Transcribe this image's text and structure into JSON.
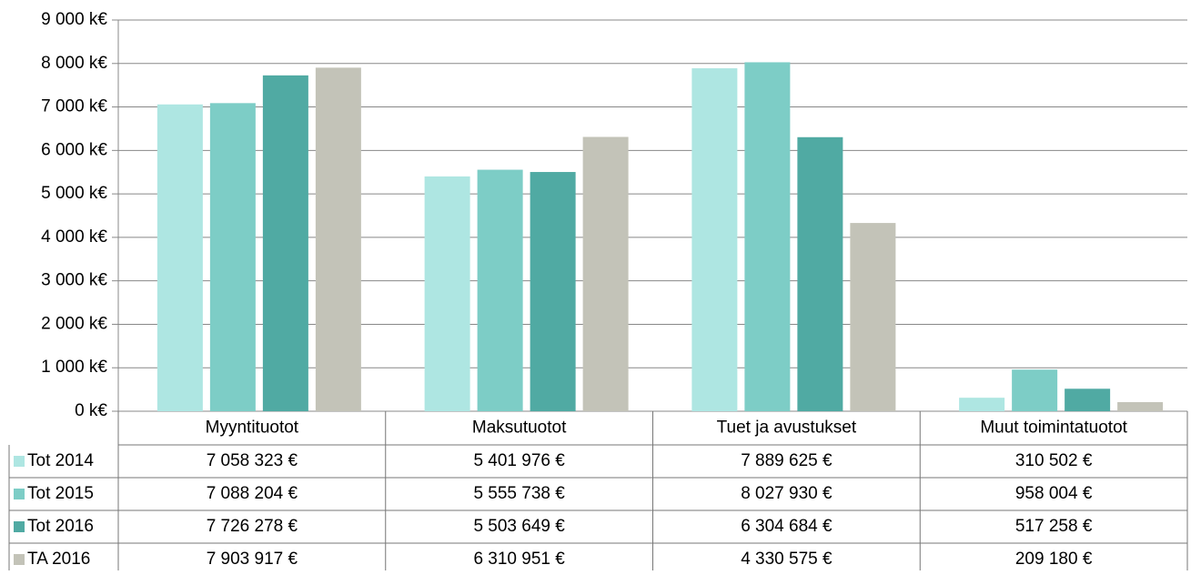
{
  "chart_data": {
    "type": "bar",
    "categories": [
      "Myyntituotot",
      "Maksutuotot",
      "Tuet ja avustukset",
      "Muut toimintatuotot"
    ],
    "series": [
      {
        "name": "Tot 2014",
        "color": "#aee6e2",
        "values": [
          7058.323,
          5401.976,
          7889.625,
          310.502
        ],
        "value_labels": [
          "7 058 323 €",
          "5 401 976 €",
          "7 889 625 €",
          "310 502 €"
        ]
      },
      {
        "name": "Tot 2015",
        "color": "#7dcdc6",
        "values": [
          7088.204,
          5555.738,
          8027.93,
          958.004
        ],
        "value_labels": [
          "7 088 204 €",
          "5 555 738 €",
          "8 027 930 €",
          "958 004 €"
        ]
      },
      {
        "name": "Tot 2016",
        "color": "#50aaa3",
        "values": [
          7726.278,
          5503.649,
          6304.684,
          517.258
        ],
        "value_labels": [
          "7 726 278 €",
          "5 503 649 €",
          "6 304 684 €",
          "517 258 €"
        ]
      },
      {
        "name": "TA 2016",
        "color": "#c3c3b8",
        "values": [
          7903.917,
          6310.951,
          4330.575,
          209.18
        ],
        "value_labels": [
          "7 903 917 €",
          "6 310 951 €",
          "4 330 575 €",
          "209 180 €"
        ]
      }
    ],
    "ylim": [
      0,
      9000
    ],
    "yticks": [
      {
        "value": 0,
        "label": "0 k€"
      },
      {
        "value": 1000,
        "label": "1 000 k€"
      },
      {
        "value": 2000,
        "label": "2 000 k€"
      },
      {
        "value": 3000,
        "label": "3 000 k€"
      },
      {
        "value": 4000,
        "label": "4 000 k€"
      },
      {
        "value": 5000,
        "label": "5 000 k€"
      },
      {
        "value": 6000,
        "label": "6 000 k€"
      },
      {
        "value": 7000,
        "label": "7 000 k€"
      },
      {
        "value": 8000,
        "label": "8 000 k€"
      },
      {
        "value": 9000,
        "label": "9 000 k€"
      }
    ],
    "grid": true
  }
}
